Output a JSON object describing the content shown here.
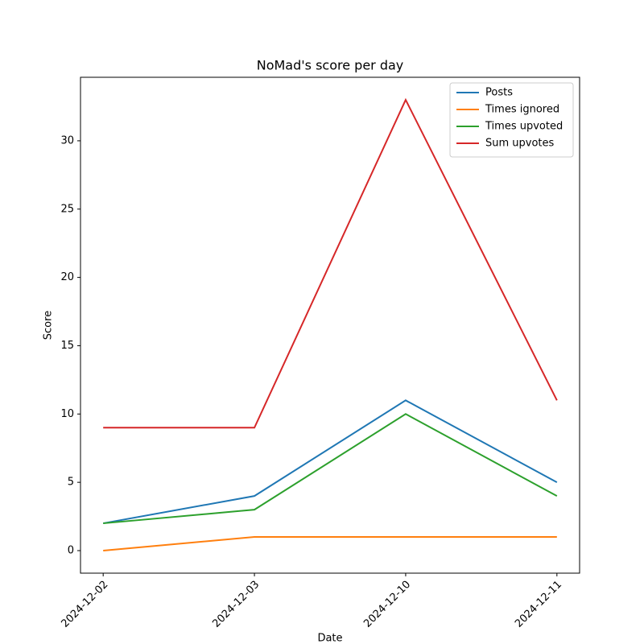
{
  "chart_data": {
    "type": "line",
    "title": "NoMad's score per day",
    "x_label": "Date",
    "y_label": "Score",
    "categories": [
      "2024-12-02",
      "2024-12-03",
      "2024-12-10",
      "2024-12-11"
    ],
    "series": [
      {
        "name": "Posts",
        "color": "#1f77b4",
        "values": [
          2,
          4,
          11,
          5
        ]
      },
      {
        "name": "Times ignored",
        "color": "#ff7f0e",
        "values": [
          0,
          1,
          1,
          1
        ]
      },
      {
        "name": "Times upvoted",
        "color": "#2ca02c",
        "values": [
          2,
          3,
          10,
          4
        ]
      },
      {
        "name": "Sum upvotes",
        "color": "#d62728",
        "values": [
          9,
          9,
          33,
          11
        ]
      }
    ],
    "ylim": [
      -1.65,
      34.65
    ],
    "yticks": [
      0,
      5,
      10,
      15,
      20,
      25,
      30
    ],
    "legend": "upper right",
    "grid": false
  }
}
